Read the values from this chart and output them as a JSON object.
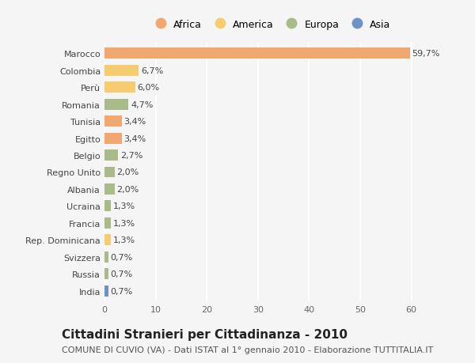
{
  "countries": [
    "Marocco",
    "Colombia",
    "Perù",
    "Romania",
    "Tunisia",
    "Egitto",
    "Belgio",
    "Regno Unito",
    "Albania",
    "Ucraina",
    "Francia",
    "Rep. Dominicana",
    "Svizzera",
    "Russia",
    "India"
  ],
  "values": [
    59.7,
    6.7,
    6.0,
    4.7,
    3.4,
    3.4,
    2.7,
    2.0,
    2.0,
    1.3,
    1.3,
    1.3,
    0.7,
    0.7,
    0.7
  ],
  "labels": [
    "59,7%",
    "6,7%",
    "6,0%",
    "4,7%",
    "3,4%",
    "3,4%",
    "2,7%",
    "2,0%",
    "2,0%",
    "1,3%",
    "1,3%",
    "1,3%",
    "0,7%",
    "0,7%",
    "0,7%"
  ],
  "continents": [
    "Africa",
    "America",
    "America",
    "Europa",
    "Africa",
    "Africa",
    "Europa",
    "Europa",
    "Europa",
    "Europa",
    "Europa",
    "America",
    "Europa",
    "Europa",
    "Asia"
  ],
  "colors": {
    "Africa": "#F0A870",
    "America": "#F5CC70",
    "Europa": "#A8BB88",
    "Asia": "#7090C8"
  },
  "legend_order": [
    "Africa",
    "America",
    "Europa",
    "Asia"
  ],
  "title": "Cittadini Stranieri per Cittadinanza - 2010",
  "subtitle": "COMUNE DI CUVIO (VA) - Dati ISTAT al 1° gennaio 2010 - Elaborazione TUTTITALIA.IT",
  "xlim": [
    0,
    65
  ],
  "xticks": [
    0,
    10,
    20,
    30,
    40,
    50,
    60
  ],
  "background_color": "#f5f5f5",
  "bar_height": 0.65,
  "title_fontsize": 11,
  "subtitle_fontsize": 8,
  "tick_fontsize": 8,
  "label_fontsize": 8,
  "legend_fontsize": 9
}
